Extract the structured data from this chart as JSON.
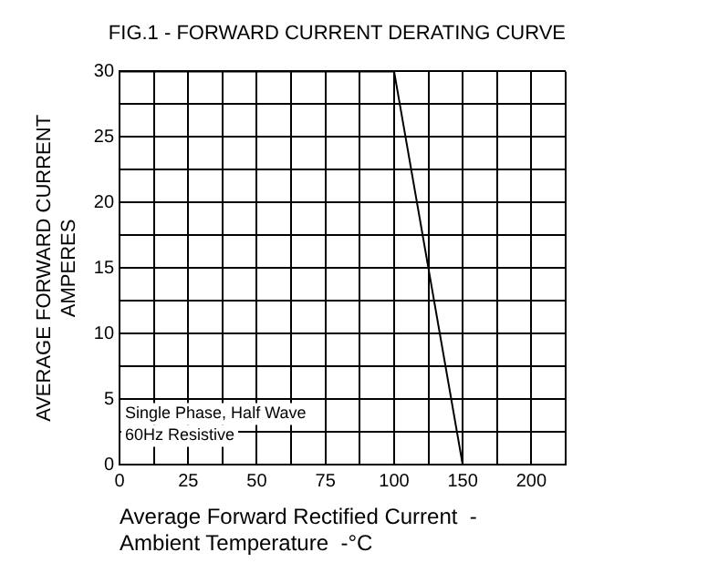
{
  "chart_data": {
    "type": "line",
    "title": "FIG.1 - FORWARD CURRENT DERATING CURVE",
    "xlabel": "Average Forward Rectified Current  -\nAmbient Temperature  -°C",
    "ylabel": "AVERAGE FORWARD CURRENT\nAMPERES",
    "categories": [
      "0",
      null,
      "25",
      null,
      "50",
      null,
      "75",
      null,
      "100",
      null,
      "150",
      null,
      "200",
      null
    ],
    "series": [
      {
        "color": "#000000",
        "values": [
          30,
          30,
          30,
          30,
          30,
          30,
          30,
          30,
          30,
          15,
          0,
          null,
          null,
          null
        ]
      }
    ],
    "ylim": [
      0,
      30
    ],
    "yticks": [
      0,
      {
        "value": 2.5,
        "label": null
      },
      5,
      {
        "value": 7.5,
        "label": null
      },
      10,
      {
        "value": 12.5,
        "label": null
      },
      15,
      {
        "value": 17.5,
        "label": null
      },
      20,
      {
        "value": 22.5,
        "label": null
      },
      25,
      {
        "value": 27.5,
        "label": null
      },
      30
    ],
    "annotations": [
      "Single Phase, Half Wave",
      "60Hz Resistive"
    ],
    "grid": true,
    "legend": false,
    "marker": "none",
    "line_style": "solid"
  }
}
